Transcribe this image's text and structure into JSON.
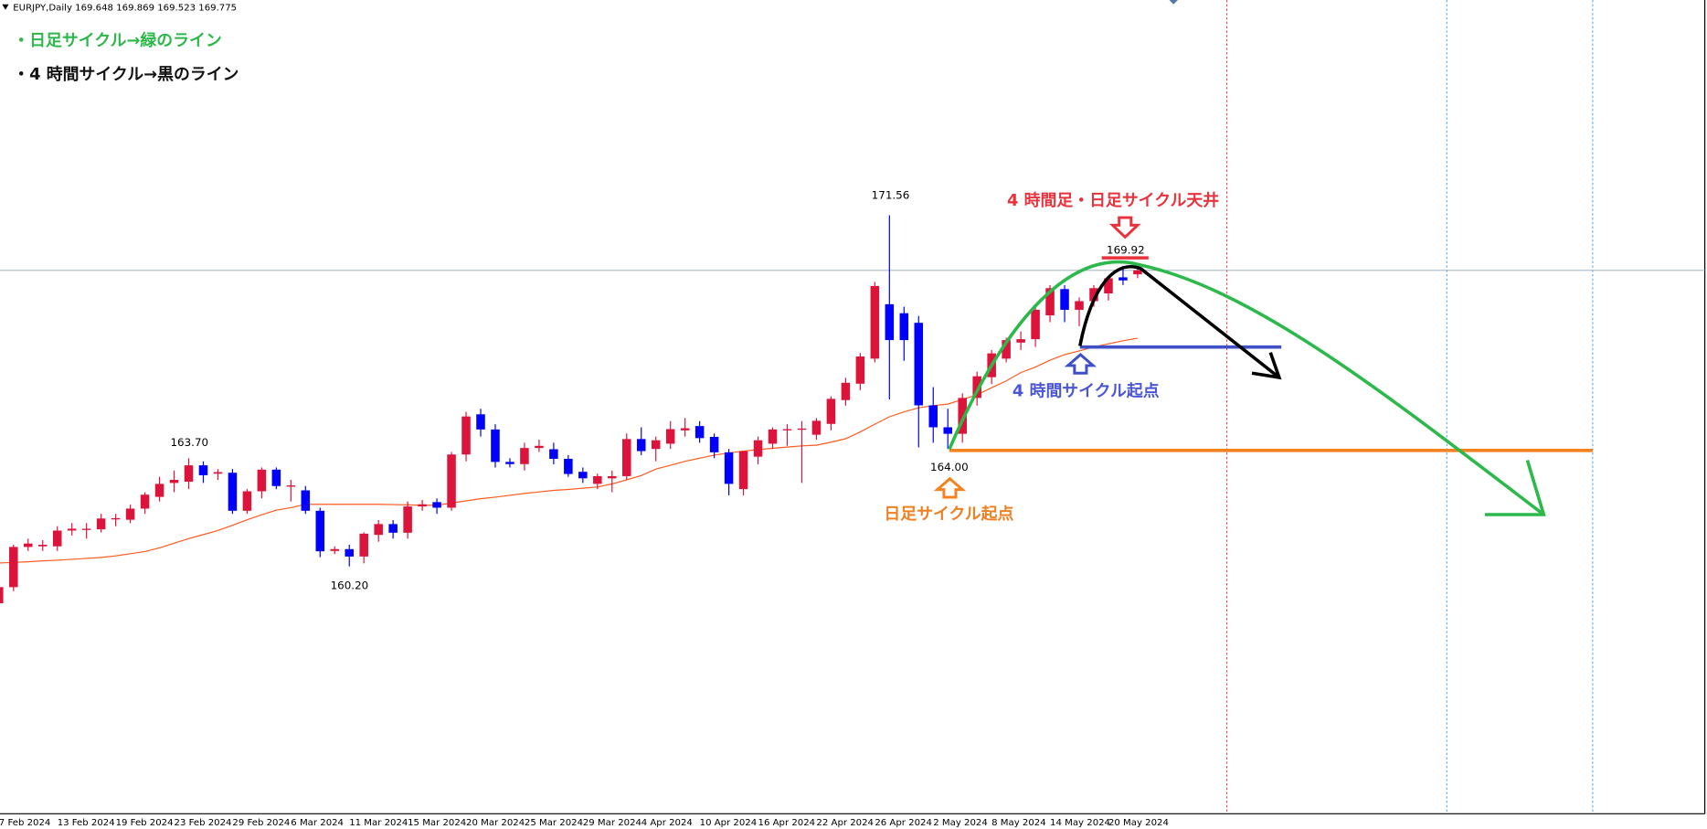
{
  "chart_data": {
    "type": "candlestick",
    "title": "EURJPY,Daily  169.648 169.869 169.523 169.775",
    "categories": [
      "7 Feb 2024",
      null,
      null,
      null,
      "13 Feb 2024",
      null,
      null,
      null,
      "19 Feb 2024",
      null,
      null,
      null,
      "23 Feb 2024",
      null,
      null,
      null,
      "29 Feb 2024",
      null,
      null,
      null,
      "6 Mar 2024",
      null,
      null,
      null,
      "11 Mar 2024",
      null,
      null,
      null,
      "15 Mar 2024",
      null,
      null,
      null,
      "20 Mar 2024",
      null,
      null,
      null,
      "25 Mar 2024",
      null,
      null,
      null,
      "29 Mar 2024",
      null,
      null,
      null,
      "4 Apr 2024",
      null,
      null,
      null,
      "10 Apr 2024",
      null,
      null,
      null,
      "16 Apr 2024",
      null,
      null,
      null,
      "22 Apr 2024",
      null,
      null,
      null,
      "26 Apr 2024",
      null,
      null,
      null,
      "2 May 2024",
      null,
      null,
      null,
      "8 May 2024",
      null,
      null,
      null,
      "14 May 2024",
      null,
      null,
      null,
      "20 May 2024",
      null,
      null
    ],
    "open": [
      159.01,
      159.53,
      160.83,
      160.85,
      160.85,
      161.36,
      161.38,
      161.4,
      161.72,
      161.71,
      162.07,
      162.45,
      162.9,
      162.94,
      163.47,
      163.2,
      163.23,
      162.0,
      162.63,
      163.33,
      162.78,
      162.66,
      162.0,
      160.7,
      160.76,
      160.52,
      161.22,
      161.57,
      161.29,
      162.14,
      162.28,
      162.1,
      163.82,
      165.12,
      164.63,
      163.58,
      163.51,
      164.03,
      163.99,
      163.68,
      163.26,
      162.87,
      163.05,
      163.12,
      164.32,
      164.0,
      164.17,
      164.6,
      164.74,
      164.39,
      163.89,
      162.7,
      163.75,
      164.17,
      164.6,
      164.62,
      164.46,
      164.81,
      165.58,
      166.11,
      166.92,
      168.68,
      168.39,
      168.08,
      165.41,
      164.7,
      164.49,
      165.65,
      166.32,
      166.92,
      167.44,
      167.55,
      168.32,
      169.17,
      168.5,
      168.78,
      169.03,
      169.55,
      169.648
    ],
    "high": [
      159.7,
      160.9,
      161.1,
      161.05,
      161.5,
      161.6,
      161.6,
      161.9,
      161.9,
      162.2,
      162.6,
      163.1,
      163.3,
      163.7,
      163.6,
      163.35,
      163.35,
      162.7,
      163.4,
      163.4,
      163.0,
      162.8,
      162.1,
      160.85,
      160.9,
      161.3,
      161.7,
      161.7,
      162.3,
      162.35,
      162.4,
      163.9,
      165.2,
      165.3,
      164.8,
      163.7,
      164.2,
      164.3,
      164.2,
      163.8,
      163.4,
      163.2,
      163.3,
      164.5,
      164.7,
      164.4,
      164.9,
      165.0,
      164.9,
      164.5,
      164.0,
      163.9,
      164.4,
      164.7,
      164.8,
      164.9,
      165.0,
      165.7,
      166.3,
      167.1,
      169.4,
      171.56,
      168.6,
      168.3,
      166.0,
      165.3,
      165.8,
      166.5,
      167.2,
      167.6,
      167.8,
      168.6,
      169.3,
      169.3,
      168.9,
      169.3,
      169.6,
      169.92,
      169.869
    ],
    "low": [
      158.8,
      159.4,
      160.7,
      160.7,
      160.7,
      161.2,
      161.1,
      161.3,
      161.5,
      161.6,
      161.9,
      162.3,
      162.6,
      162.7,
      162.9,
      163.0,
      161.9,
      161.9,
      162.4,
      162.7,
      162.3,
      161.9,
      160.5,
      160.6,
      160.2,
      160.3,
      161.0,
      161.1,
      161.1,
      162.0,
      161.9,
      162.0,
      163.6,
      164.4,
      163.4,
      163.4,
      163.3,
      163.9,
      163.5,
      163.1,
      162.9,
      162.7,
      162.6,
      163.0,
      163.8,
      163.6,
      164.0,
      164.4,
      164.2,
      163.7,
      162.5,
      162.5,
      163.5,
      164.0,
      164.1,
      162.9,
      164.3,
      164.6,
      165.4,
      165.9,
      166.8,
      165.6,
      166.85,
      164.05,
      164.2,
      164.0,
      164.2,
      165.4,
      166.1,
      166.8,
      167.2,
      167.3,
      168.1,
      168.1,
      167.97,
      168.6,
      168.8,
      169.3,
      169.523
    ],
    "close": [
      159.53,
      160.83,
      160.94,
      160.9,
      161.36,
      161.42,
      161.42,
      161.75,
      161.76,
      162.07,
      162.52,
      162.87,
      163.0,
      163.47,
      163.15,
      163.25,
      162.0,
      162.63,
      163.33,
      162.8,
      162.82,
      162.0,
      160.69,
      160.76,
      160.52,
      161.26,
      161.57,
      161.29,
      162.14,
      162.21,
      162.1,
      163.82,
      165.05,
      164.63,
      163.58,
      163.51,
      164.03,
      164.1,
      163.68,
      163.19,
      163.05,
      163.12,
      163.12,
      164.32,
      163.93,
      164.28,
      164.64,
      164.67,
      164.35,
      163.89,
      162.87,
      163.93,
      164.28,
      164.63,
      164.64,
      164.66,
      164.91,
      165.62,
      166.14,
      166.99,
      169.27,
      167.52,
      167.52,
      165.41,
      164.7,
      164.49,
      165.65,
      166.35,
      167.09,
      167.52,
      167.55,
      168.5,
      169.2,
      168.5,
      168.78,
      169.2,
      169.52,
      169.45,
      169.775
    ],
    "up_color": "#dc143c",
    "down_color": "#0000ff",
    "moving_average": {
      "color": "#ff5a1f",
      "values": [
        160.31,
        160.33,
        160.35,
        160.38,
        160.4,
        160.43,
        160.46,
        160.49,
        160.54,
        160.61,
        160.68,
        160.8,
        160.95,
        161.1,
        161.23,
        161.36,
        161.53,
        161.71,
        161.87,
        162.02,
        162.1,
        162.21,
        162.21,
        162.21,
        162.21,
        162.21,
        162.21,
        162.2,
        162.19,
        162.18,
        162.18,
        162.25,
        162.32,
        162.39,
        162.44,
        162.5,
        162.56,
        162.61,
        162.66,
        162.69,
        162.73,
        162.77,
        162.87,
        163.0,
        163.14,
        163.35,
        163.47,
        163.6,
        163.7,
        163.8,
        163.87,
        163.93,
        163.98,
        164.02,
        164.06,
        164.1,
        164.12,
        164.22,
        164.33,
        164.55,
        164.8,
        165.04,
        165.2,
        165.33,
        165.4,
        165.45,
        165.6,
        165.75,
        165.98,
        166.2,
        166.47,
        166.65,
        166.87,
        167.05,
        167.17,
        167.3,
        167.4,
        167.5,
        167.58
      ]
    },
    "current_price": 169.775,
    "ylim": [
      152.2,
      178.52
    ],
    "price_labels": [
      171.56,
      169.92,
      {
        "value": 164.0,
        "label": "164.00"
      },
      {
        "value": 163.7,
        "label": "163.70"
      },
      {
        "value": 160.2,
        "label": "160.20"
      }
    ],
    "annotations": [
      {
        "text": "・日足サイクル→緑のライン",
        "color": "#2db84b"
      },
      {
        "text": "・4 時間サイクル→黒のライン",
        "color": "#111111"
      },
      {
        "text": "4 時間足・日足サイクル天井",
        "color": "#e8323c"
      },
      {
        "text": "4 時間サイクル起点",
        "color": "#4a56d6"
      },
      {
        "text": "日足サイクル起点",
        "color": "#f07f22"
      }
    ]
  }
}
